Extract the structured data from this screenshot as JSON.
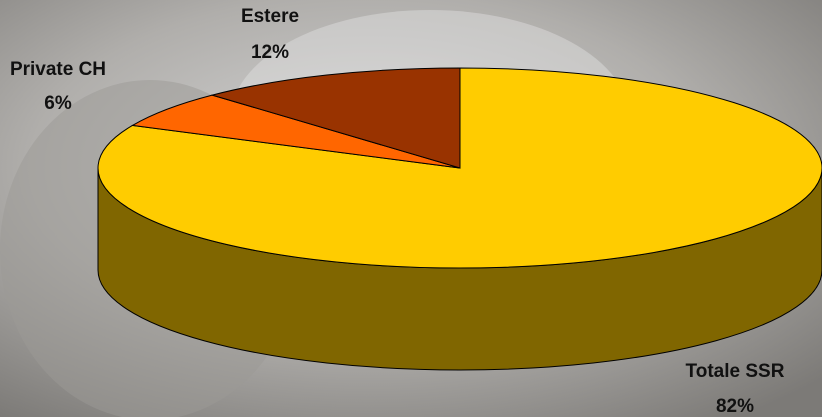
{
  "chart_data": {
    "type": "pie3d",
    "categories": [
      "Totale SSR",
      "Private CH",
      "Estere"
    ],
    "values": [
      82,
      6,
      12
    ],
    "value_labels": [
      "82%",
      "6%",
      "12%"
    ],
    "colors": [
      "#ffcc00",
      "#ff6600",
      "#993300"
    ]
  }
}
